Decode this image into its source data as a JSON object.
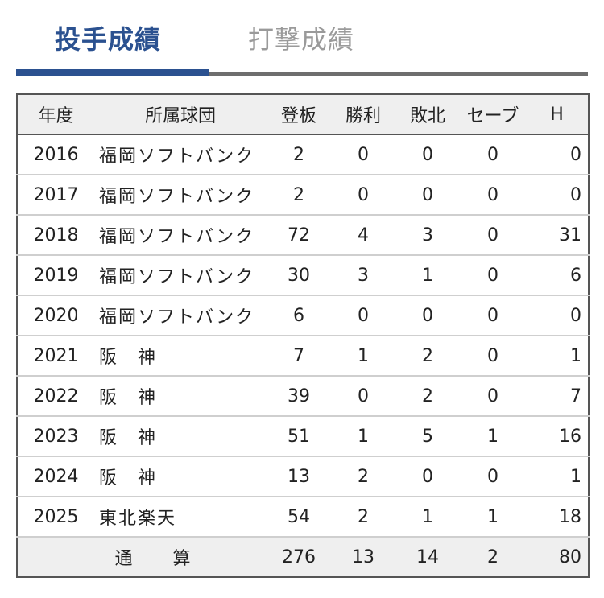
{
  "tabs": {
    "active_label": "投手成績",
    "inactive_label": "打撃成績"
  },
  "table": {
    "headers": [
      "年度",
      "所属球団",
      "登板",
      "勝利",
      "敗北",
      "セーブ",
      "H"
    ],
    "rows": [
      [
        "2016",
        "福岡ソフトバンク",
        "2",
        "0",
        "0",
        "0",
        "0"
      ],
      [
        "2017",
        "福岡ソフトバンク",
        "2",
        "0",
        "0",
        "0",
        "0"
      ],
      [
        "2018",
        "福岡ソフトバンク",
        "72",
        "4",
        "3",
        "0",
        "31"
      ],
      [
        "2019",
        "福岡ソフトバンク",
        "30",
        "3",
        "1",
        "0",
        "6"
      ],
      [
        "2020",
        "福岡ソフトバンク",
        "6",
        "0",
        "0",
        "0",
        "0"
      ],
      [
        "2021",
        "阪　神",
        "7",
        "1",
        "2",
        "0",
        "1"
      ],
      [
        "2022",
        "阪　神",
        "39",
        "0",
        "2",
        "0",
        "7"
      ],
      [
        "2023",
        "阪　神",
        "51",
        "1",
        "5",
        "1",
        "16"
      ],
      [
        "2024",
        "阪　神",
        "13",
        "2",
        "0",
        "0",
        "1"
      ],
      [
        "2025",
        "東北楽天",
        "54",
        "2",
        "1",
        "1",
        "18"
      ]
    ],
    "total": {
      "label": "通　算",
      "values": [
        "276",
        "13",
        "14",
        "2",
        "80"
      ]
    }
  },
  "colors": {
    "accent": "#2b5190",
    "inactive_tab": "#9a9a9a",
    "header_bg": "#efefef",
    "border": "#555555"
  }
}
